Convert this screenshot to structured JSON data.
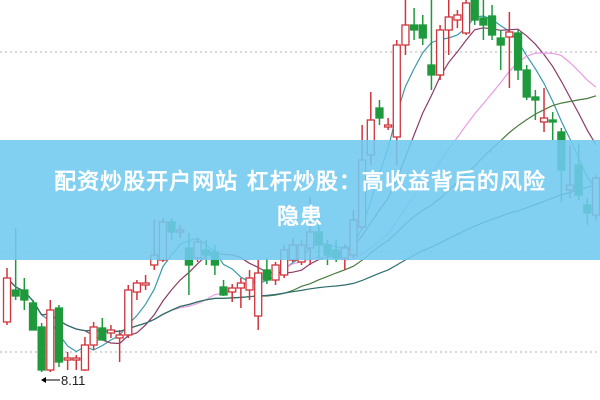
{
  "banner": {
    "title_line1": "配资炒股开户网站 杠杆炒股：高收益背后的风险",
    "title_line2": "隐患",
    "background_color": "#70caf0",
    "text_color": "#ffffff"
  },
  "chart_data": {
    "type": "candlestick",
    "grid": "horizontal dotted",
    "annotations": [
      {
        "text": "8.11",
        "marks": "lowest low",
        "candle_index": 4
      }
    ],
    "colors": {
      "up": "#d0343c",
      "down": "#1e9a3c",
      "grid": "#b0b0b0"
    },
    "moving_averages": [
      {
        "period": 5,
        "color": "#3a9aaa"
      },
      {
        "period": 10,
        "color": "#8b3a6a"
      },
      {
        "period": 20,
        "color": "#e99be6"
      },
      {
        "period": 30,
        "color": "#4a7a40"
      },
      {
        "period": 60,
        "color": "#2e6e6e"
      }
    ],
    "candles_ohlc": [
      [
        9.11,
        10.19,
        9.05,
        9.99
      ],
      [
        9.75,
        10.99,
        9.55,
        9.63
      ],
      [
        9.75,
        9.99,
        9.35,
        9.55
      ],
      [
        9.49,
        9.55,
        8.95,
        8.95
      ],
      [
        9.01,
        9.09,
        8.11,
        8.15
      ],
      [
        8.15,
        9.55,
        8.11,
        9.35
      ],
      [
        9.39,
        9.45,
        8.21,
        8.31
      ],
      [
        8.35,
        8.51,
        8.15,
        8.39
      ],
      [
        8.35,
        8.45,
        8.15,
        8.39
      ],
      [
        8.15,
        8.81,
        8.13,
        8.65
      ],
      [
        8.65,
        9.11,
        8.55,
        9.01
      ],
      [
        8.99,
        9.19,
        8.75,
        8.75
      ],
      [
        8.89,
        9.05,
        8.79,
        8.95
      ],
      [
        8.79,
        8.95,
        8.31,
        8.85
      ],
      [
        8.85,
        9.85,
        8.79,
        9.75
      ],
      [
        9.71,
        9.95,
        9.55,
        9.89
      ],
      [
        9.85,
        10.05,
        9.75,
        9.89
      ],
      [
        10.25,
        11.15,
        10.15,
        10.45
      ],
      [
        10.35,
        11.19,
        10.31,
        11.11
      ],
      [
        11.11,
        11.19,
        10.75,
        10.91
      ],
      [
        10.91,
        11.05,
        10.79,
        10.95
      ],
      [
        10.59,
        10.89,
        9.65,
        10.25
      ],
      [
        10.39,
        10.79,
        10.31,
        10.71
      ],
      [
        10.55,
        10.75,
        10.25,
        10.45
      ],
      [
        10.51,
        10.65,
        10.05,
        10.25
      ],
      [
        9.81,
        9.95,
        9.63,
        9.65
      ],
      [
        9.71,
        9.87,
        9.51,
        9.79
      ],
      [
        9.79,
        9.99,
        9.39,
        9.89
      ],
      [
        9.75,
        10.15,
        9.55,
        9.99
      ],
      [
        9.23,
        10.35,
        8.95,
        10.09
      ],
      [
        10.15,
        10.39,
        9.87,
        9.95
      ],
      [
        9.95,
        10.31,
        9.85,
        10.25
      ],
      [
        10.05,
        10.65,
        9.99,
        10.55
      ],
      [
        10.35,
        10.79,
        10.31,
        10.65
      ],
      [
        10.31,
        10.75,
        10.25,
        10.65
      ],
      [
        10.59,
        11.61,
        10.25,
        10.91
      ],
      [
        10.91,
        11.31,
        10.39,
        10.65
      ],
      [
        10.65,
        10.75,
        10.25,
        10.45
      ],
      [
        10.55,
        10.75,
        10.31,
        10.39
      ],
      [
        10.39,
        10.67,
        10.15,
        10.59
      ],
      [
        10.45,
        11.35,
        10.39,
        11.15
      ],
      [
        11.01,
        13.05,
        10.95,
        12.35
      ],
      [
        12.45,
        13.71,
        12.25,
        13.15
      ],
      [
        13.39,
        13.55,
        13.05,
        13.19
      ],
      [
        13.01,
        13.19,
        12.95,
        13.05
      ],
      [
        12.81,
        14.75,
        12.25,
        14.65
      ],
      [
        14.65,
        15.55,
        14.45,
        15.05
      ],
      [
        15.05,
        15.39,
        14.75,
        14.95
      ],
      [
        15.05,
        15.25,
        14.65,
        14.79
      ],
      [
        14.25,
        15.55,
        13.75,
        14.05
      ],
      [
        14.05,
        15.05,
        13.95,
        14.95
      ],
      [
        14.95,
        15.55,
        14.45,
        15.21
      ],
      [
        15.15,
        15.35,
        14.99,
        15.25
      ],
      [
        14.89,
        15.55,
        14.85,
        15.49
      ],
      [
        15.55,
        15.55,
        15.05,
        15.15
      ],
      [
        15.19,
        15.55,
        14.75,
        15.05
      ],
      [
        15.23,
        15.45,
        14.75,
        14.85
      ],
      [
        14.79,
        14.95,
        14.15,
        14.65
      ],
      [
        14.81,
        15.31,
        13.79,
        14.91
      ],
      [
        14.89,
        14.95,
        13.95,
        14.15
      ],
      [
        14.15,
        14.25,
        13.55,
        13.61
      ],
      [
        13.61,
        13.75,
        13.15,
        13.55
      ],
      [
        13.11,
        13.79,
        12.91,
        13.19
      ],
      [
        13.15,
        13.31,
        12.75,
        13.11
      ],
      [
        12.91,
        12.99,
        11.51,
        12.15
      ],
      [
        11.75,
        12.65,
        11.59,
        11.85
      ],
      [
        12.25,
        12.69,
        11.55,
        11.65
      ],
      [
        11.45,
        11.59,
        11.05,
        11.29
      ],
      [
        11.25,
        12.05,
        11.15,
        11.99
      ]
    ]
  }
}
